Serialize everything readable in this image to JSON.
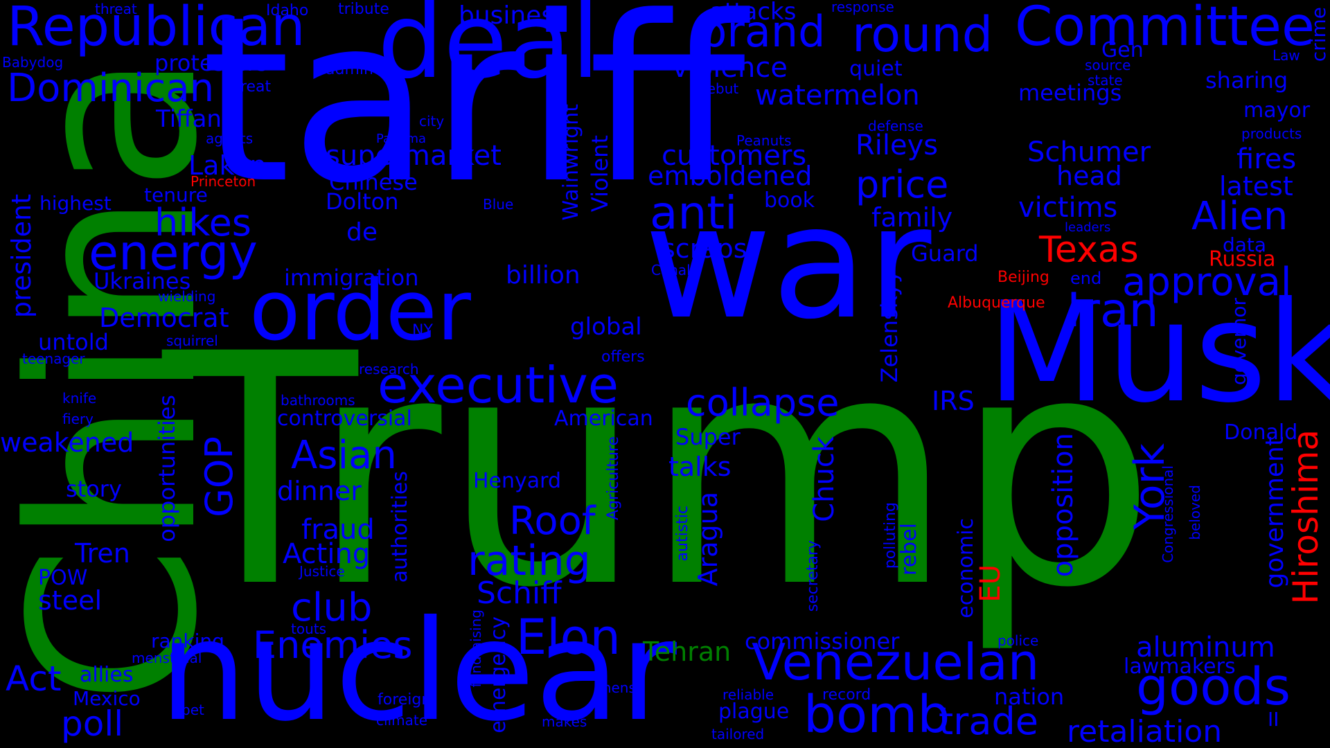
{
  "colors": {
    "background": "#000000",
    "green": "#008000",
    "blue": "#0000ff",
    "red": "#ff0000"
  },
  "words": [
    {
      "key": "trump",
      "text": "Trump",
      "color": "#008000"
    },
    {
      "key": "tariff",
      "text": "tariff",
      "color": "#0000ff"
    },
    {
      "key": "china",
      "text": "China",
      "color": "#008000"
    },
    {
      "key": "war",
      "text": "war",
      "color": "#0000ff"
    },
    {
      "key": "nuclear",
      "text": "nuclear",
      "color": "#0000ff"
    },
    {
      "key": "musk",
      "text": "Musk",
      "color": "#0000ff"
    },
    {
      "key": "deal",
      "text": "deal",
      "color": "#0000ff"
    },
    {
      "key": "order",
      "text": "order",
      "color": "#0000ff"
    },
    {
      "key": "republican",
      "text": "Republican",
      "color": "#0000ff"
    },
    {
      "key": "committee",
      "text": "Committee",
      "color": "#0000ff"
    },
    {
      "key": "brand",
      "text": "brand",
      "color": "#0000ff"
    },
    {
      "key": "round",
      "text": "round",
      "color": "#0000ff"
    },
    {
      "key": "dominican",
      "text": "Dominican",
      "color": "#0000ff"
    },
    {
      "key": "energy",
      "text": "energy",
      "color": "#0000ff"
    },
    {
      "key": "executive",
      "text": "executive",
      "color": "#0000ff"
    },
    {
      "key": "anti",
      "text": "anti",
      "color": "#0000ff"
    },
    {
      "key": "iran",
      "text": "Iran",
      "color": "#0000ff"
    },
    {
      "key": "venezuelan",
      "text": "Venezuelan",
      "color": "#0000ff"
    },
    {
      "key": "goods",
      "text": "goods",
      "color": "#0000ff"
    },
    {
      "key": "bomb",
      "text": "bomb",
      "color": "#0000ff"
    },
    {
      "key": "elon",
      "text": "Elon",
      "color": "#0000ff"
    },
    {
      "key": "enemies",
      "text": "Enemies",
      "color": "#0000ff"
    },
    {
      "key": "approval",
      "text": "approval",
      "color": "#0000ff"
    },
    {
      "key": "alien",
      "text": "Alien",
      "color": "#0000ff"
    },
    {
      "key": "collapse",
      "text": "collapse",
      "color": "#0000ff"
    },
    {
      "key": "rating",
      "text": "rating",
      "color": "#0000ff"
    },
    {
      "key": "trade",
      "text": "trade",
      "color": "#0000ff"
    },
    {
      "key": "price",
      "text": "price",
      "color": "#0000ff"
    },
    {
      "key": "hikes",
      "text": "hikes",
      "color": "#0000ff"
    },
    {
      "key": "roof",
      "text": "Roof",
      "color": "#0000ff"
    },
    {
      "key": "asian",
      "text": "Asian",
      "color": "#0000ff"
    },
    {
      "key": "retaliation",
      "text": "retaliation",
      "color": "#0000ff"
    },
    {
      "key": "aluminum",
      "text": "aluminum",
      "color": "#0000ff"
    },
    {
      "key": "act",
      "text": "Act",
      "color": "#0000ff"
    },
    {
      "key": "club",
      "text": "club",
      "color": "#0000ff"
    },
    {
      "key": "poll",
      "text": "poll",
      "color": "#0000ff"
    },
    {
      "key": "gop",
      "text": "GOP",
      "color": "#0000ff"
    },
    {
      "key": "york",
      "text": "York",
      "color": "#0000ff"
    },
    {
      "key": "schiff",
      "text": "Schiff",
      "color": "#0000ff"
    },
    {
      "key": "victims",
      "text": "victims",
      "color": "#0000ff"
    },
    {
      "key": "schumer",
      "text": "Schumer",
      "color": "#0000ff"
    },
    {
      "key": "customers",
      "text": "customers",
      "color": "#0000ff"
    },
    {
      "key": "supermarket",
      "text": "supermarket",
      "color": "#0000ff"
    },
    {
      "key": "watermelon",
      "text": "watermelon",
      "color": "#0000ff"
    },
    {
      "key": "violence",
      "text": "violence",
      "color": "#0000ff"
    },
    {
      "key": "emboldened",
      "text": "emboldened",
      "color": "#0000ff"
    },
    {
      "key": "democrat",
      "text": "Democrat",
      "color": "#0000ff"
    },
    {
      "key": "texas",
      "text": "Texas",
      "color": "#ff0000"
    },
    {
      "key": "tehran",
      "text": "Tehran",
      "color": "#008000"
    },
    {
      "key": "hiroshima",
      "text": "Hiroshima",
      "color": "#ff0000"
    },
    {
      "key": "eu",
      "text": "EU",
      "color": "#ff0000"
    },
    {
      "key": "russia",
      "text": "Russia",
      "color": "#ff0000"
    },
    {
      "key": "beijing",
      "text": "Beijing",
      "color": "#ff0000"
    },
    {
      "key": "albuquerque",
      "text": "Albuquerque",
      "color": "#ff0000"
    },
    {
      "key": "princeton",
      "text": "Princeton",
      "color": "#ff0000"
    },
    {
      "key": "business",
      "text": "business",
      "color": "#0000ff"
    },
    {
      "key": "attacks",
      "text": "attacks",
      "color": "#0000ff"
    },
    {
      "key": "rileys",
      "text": "Rileys",
      "color": "#0000ff"
    },
    {
      "key": "head",
      "text": "head",
      "color": "#0000ff"
    },
    {
      "key": "fires",
      "text": "fires",
      "color": "#0000ff"
    },
    {
      "key": "latest",
      "text": "latest",
      "color": "#0000ff"
    },
    {
      "key": "meetings",
      "text": "meetings",
      "color": "#0000ff"
    },
    {
      "key": "sharing",
      "text": "sharing",
      "color": "#0000ff"
    },
    {
      "key": "mayor",
      "text": "mayor",
      "color": "#0000ff"
    },
    {
      "key": "gen",
      "text": "Gen",
      "color": "#0000ff"
    },
    {
      "key": "family",
      "text": "family",
      "color": "#0000ff"
    },
    {
      "key": "scraps",
      "text": "scraps",
      "color": "#0000ff"
    },
    {
      "key": "billion",
      "text": "billion",
      "color": "#0000ff"
    },
    {
      "key": "guard",
      "text": "Guard",
      "color": "#0000ff"
    },
    {
      "key": "immigration",
      "text": "immigration",
      "color": "#0000ff"
    },
    {
      "key": "global",
      "text": "global",
      "color": "#0000ff"
    },
    {
      "key": "irs",
      "text": "IRS",
      "color": "#0000ff"
    },
    {
      "key": "ukraines",
      "text": "Ukraines",
      "color": "#0000ff"
    },
    {
      "key": "laken",
      "text": "Laken",
      "color": "#0000ff"
    },
    {
      "key": "tiffany",
      "text": "Tiffany",
      "color": "#0000ff"
    },
    {
      "key": "chinese",
      "text": "Chinese",
      "color": "#0000ff"
    },
    {
      "key": "dolton",
      "text": "Dolton",
      "color": "#0000ff"
    },
    {
      "key": "de",
      "text": "de",
      "color": "#0000ff"
    },
    {
      "key": "protesters",
      "text": "protesters",
      "color": "#0000ff"
    },
    {
      "key": "highest",
      "text": "highest",
      "color": "#0000ff"
    },
    {
      "key": "tenure",
      "text": "tenure",
      "color": "#0000ff"
    },
    {
      "key": "untold",
      "text": "untold",
      "color": "#0000ff"
    },
    {
      "key": "weakened",
      "text": "weakened",
      "color": "#0000ff"
    },
    {
      "key": "story",
      "text": "story",
      "color": "#0000ff"
    },
    {
      "key": "tren",
      "text": "Tren",
      "color": "#0000ff"
    },
    {
      "key": "pow",
      "text": "POW",
      "color": "#0000ff"
    },
    {
      "key": "steel",
      "text": "steel",
      "color": "#0000ff"
    },
    {
      "key": "ranking",
      "text": "ranking",
      "color": "#0000ff"
    },
    {
      "key": "allies",
      "text": "allies",
      "color": "#0000ff"
    },
    {
      "key": "mexico",
      "text": "Mexico",
      "color": "#0000ff"
    },
    {
      "key": "dinner",
      "text": "dinner",
      "color": "#0000ff"
    },
    {
      "key": "fraud",
      "text": "fraud",
      "color": "#0000ff"
    },
    {
      "key": "acting",
      "text": "Acting",
      "color": "#0000ff"
    },
    {
      "key": "controversial",
      "text": "controversial",
      "color": "#0000ff"
    },
    {
      "key": "american",
      "text": "American",
      "color": "#0000ff"
    },
    {
      "key": "super",
      "text": "Super",
      "color": "#0000ff"
    },
    {
      "key": "talks",
      "text": "talks",
      "color": "#0000ff"
    },
    {
      "key": "henyard",
      "text": "Henyard",
      "color": "#0000ff"
    },
    {
      "key": "commissioner",
      "text": "commissioner",
      "color": "#0000ff"
    },
    {
      "key": "lawmakers",
      "text": "lawmakers",
      "color": "#0000ff"
    },
    {
      "key": "nation",
      "text": "nation",
      "color": "#0000ff"
    },
    {
      "key": "donald",
      "text": "Donald",
      "color": "#0000ff"
    },
    {
      "key": "plague",
      "text": "plague",
      "color": "#0000ff"
    },
    {
      "key": "president",
      "text": "president",
      "color": "#0000ff"
    },
    {
      "key": "opportunities",
      "text": "opportunities",
      "color": "#0000ff"
    },
    {
      "key": "authorities",
      "text": "authorities",
      "color": "#0000ff"
    },
    {
      "key": "wainwright",
      "text": "Wainwright",
      "color": "#0000ff"
    },
    {
      "key": "violent",
      "text": "Violent",
      "color": "#0000ff"
    },
    {
      "key": "chuck",
      "text": "Chuck",
      "color": "#0000ff"
    },
    {
      "key": "aragua",
      "text": "Aragua",
      "color": "#0000ff"
    },
    {
      "key": "zelenskyy",
      "text": "Zelenskyy",
      "color": "#0000ff"
    },
    {
      "key": "opposition",
      "text": "opposition",
      "color": "#0000ff"
    },
    {
      "key": "economic",
      "text": "economic",
      "color": "#0000ff"
    },
    {
      "key": "rebel",
      "text": "rebel",
      "color": "#0000ff"
    },
    {
      "key": "emergency",
      "text": "emergency",
      "color": "#0000ff"
    },
    {
      "key": "government",
      "text": "government",
      "color": "#0000ff"
    },
    {
      "key": "governor",
      "text": "governor",
      "color": "#0000ff"
    },
    {
      "key": "crime",
      "text": "crime",
      "color": "#0000ff"
    },
    {
      "key": "agriculture",
      "text": "Agriculture",
      "color": "#0000ff"
    },
    {
      "key": "congressional",
      "text": "Congressional",
      "color": "#0000ff"
    },
    {
      "key": "beloved",
      "text": "beloved",
      "color": "#0000ff"
    },
    {
      "key": "polluting",
      "text": "polluting",
      "color": "#0000ff"
    },
    {
      "key": "secretary",
      "text": "secretary",
      "color": "#0000ff"
    },
    {
      "key": "autistic",
      "text": "autistic",
      "color": "#0000ff"
    },
    {
      "key": "fundraising",
      "text": "fundraising",
      "color": "#0000ff"
    },
    {
      "key": "threat",
      "text": "threat",
      "color": "#0000ff"
    },
    {
      "key": "idaho",
      "text": "Idaho",
      "color": "#0000ff"
    },
    {
      "key": "tribute",
      "text": "tribute",
      "color": "#0000ff"
    },
    {
      "key": "response",
      "text": "response",
      "color": "#0000ff"
    },
    {
      "key": "babydog",
      "text": "Babydog",
      "color": "#0000ff"
    },
    {
      "key": "admin",
      "text": "admin",
      "color": "#0000ff"
    },
    {
      "key": "great",
      "text": "great",
      "color": "#0000ff"
    },
    {
      "key": "quiet",
      "text": "quiet",
      "color": "#0000ff"
    },
    {
      "key": "source",
      "text": "source",
      "color": "#0000ff"
    },
    {
      "key": "state",
      "text": "state",
      "color": "#0000ff"
    },
    {
      "key": "law",
      "text": "Law",
      "color": "#0000ff"
    },
    {
      "key": "debut",
      "text": "debut",
      "color": "#0000ff"
    },
    {
      "key": "city",
      "text": "city",
      "color": "#0000ff"
    },
    {
      "key": "agents",
      "text": "agents",
      "color": "#0000ff"
    },
    {
      "key": "panama",
      "text": "Panama",
      "color": "#0000ff"
    },
    {
      "key": "peanuts",
      "text": "Peanuts",
      "color": "#0000ff"
    },
    {
      "key": "defense",
      "text": "defense",
      "color": "#0000ff"
    },
    {
      "key": "products",
      "text": "products",
      "color": "#0000ff"
    },
    {
      "key": "book",
      "text": "book",
      "color": "#0000ff"
    },
    {
      "key": "blue",
      "text": "Blue",
      "color": "#0000ff"
    },
    {
      "key": "leaders",
      "text": "leaders",
      "color": "#0000ff"
    },
    {
      "key": "data",
      "text": "data",
      "color": "#0000ff"
    },
    {
      "key": "end",
      "text": "end",
      "color": "#0000ff"
    },
    {
      "key": "canal",
      "text": "Canal",
      "color": "#0000ff"
    },
    {
      "key": "wielding",
      "text": "wielding",
      "color": "#0000ff"
    },
    {
      "key": "squirrel",
      "text": "squirrel",
      "color": "#0000ff"
    },
    {
      "key": "ny",
      "text": "NY",
      "color": "#0000ff"
    },
    {
      "key": "teenager",
      "text": "teenager",
      "color": "#0000ff"
    },
    {
      "key": "research",
      "text": "research",
      "color": "#0000ff"
    },
    {
      "key": "offers",
      "text": "offers",
      "color": "#0000ff"
    },
    {
      "key": "knife",
      "text": "knife",
      "color": "#0000ff"
    },
    {
      "key": "fiery",
      "text": "fiery",
      "color": "#0000ff"
    },
    {
      "key": "bathrooms",
      "text": "bathrooms",
      "color": "#0000ff"
    },
    {
      "key": "justice",
      "text": "Justice",
      "color": "#0000ff"
    },
    {
      "key": "touts",
      "text": "touts",
      "color": "#0000ff"
    },
    {
      "key": "menstrual",
      "text": "menstrual",
      "color": "#0000ff"
    },
    {
      "key": "pet",
      "text": "pet",
      "color": "#0000ff"
    },
    {
      "key": "foreign",
      "text": "foreign",
      "color": "#0000ff"
    },
    {
      "key": "climate",
      "text": "climate",
      "color": "#0000ff"
    },
    {
      "key": "mens",
      "text": "mens",
      "color": "#0000ff"
    },
    {
      "key": "makes",
      "text": "makes",
      "color": "#0000ff"
    },
    {
      "key": "reliable",
      "text": "reliable",
      "color": "#0000ff"
    },
    {
      "key": "record",
      "text": "record",
      "color": "#0000ff"
    },
    {
      "key": "tailored",
      "text": "tailored",
      "color": "#0000ff"
    },
    {
      "key": "police",
      "text": "police",
      "color": "#0000ff"
    },
    {
      "key": "ii",
      "text": "II",
      "color": "#0000ff"
    }
  ]
}
